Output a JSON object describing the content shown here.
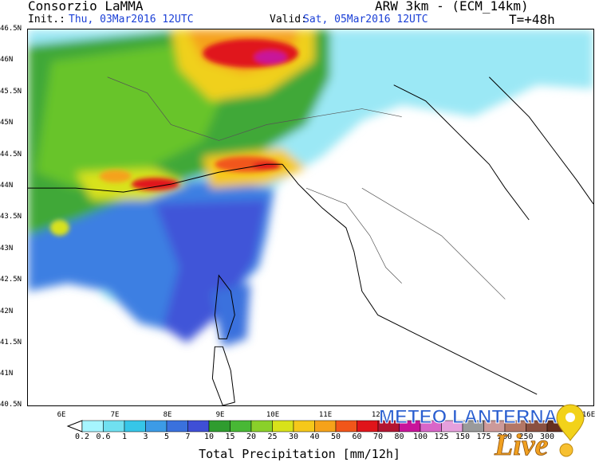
{
  "header": {
    "org": "Consorzio LaMMA",
    "model": "ARW 3km - (ECM_14km)",
    "init_label": "Init.:",
    "init_value": "Thu, 03Mar2016 12UTC",
    "valid_label": "Valid:",
    "valid_value": "Sat, 05Mar2016 12UTC",
    "forecast_step": "T=+48h"
  },
  "map": {
    "lat_labels": [
      "46.5N",
      "46N",
      "45.5N",
      "45N",
      "44.5N",
      "44N",
      "43.5N",
      "43N",
      "42.5N",
      "42N",
      "41.5N",
      "41N",
      "40.5N"
    ],
    "lon_labels": [
      "6E",
      "7E",
      "8E",
      "9E",
      "10E",
      "11E",
      "12E",
      "16E"
    ]
  },
  "legend": {
    "title": "Total Precipitation [mm/12h]",
    "values": [
      "0.2",
      "0.6",
      "1",
      "3",
      "5",
      "7",
      "10",
      "15",
      "20",
      "25",
      "30",
      "40",
      "50",
      "60",
      "70",
      "80",
      "100",
      "125",
      "150",
      "175",
      "200",
      "250",
      "300"
    ],
    "colors": [
      "#a6f5ff",
      "#70e0f0",
      "#36c6e8",
      "#3c9be6",
      "#3a71dd",
      "#3f4fd6",
      "#2f9c2f",
      "#48b835",
      "#8ad02a",
      "#d8e21a",
      "#f5c81a",
      "#f5a21a",
      "#f1561a",
      "#e0141a",
      "#b31431",
      "#c8149a",
      "#d866c8",
      "#e6a0dc",
      "#9a9a9a",
      "#cc9999",
      "#b37766",
      "#8a5040",
      "#663020"
    ]
  },
  "watermark": {
    "text_top": "METEO LANTERNA",
    "text_bottom": "Live"
  }
}
